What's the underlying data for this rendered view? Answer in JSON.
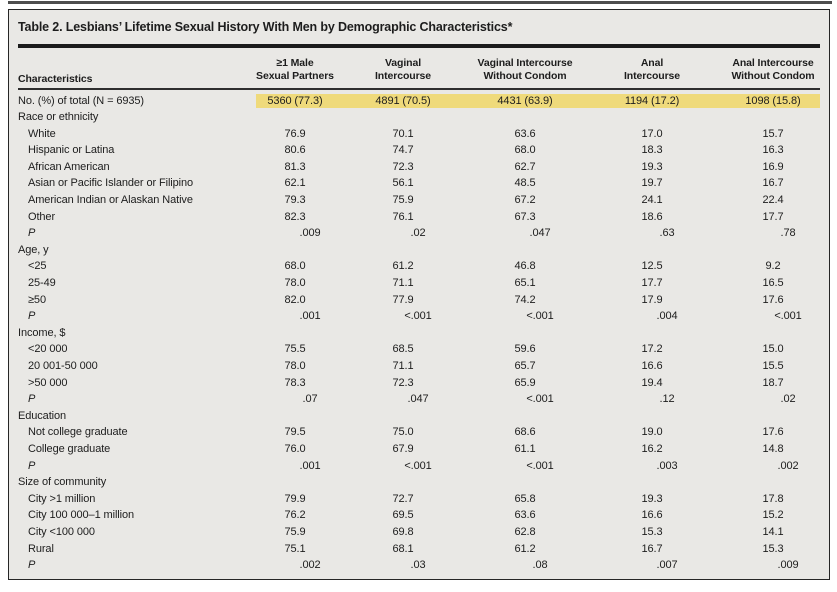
{
  "title": "Table 2. Lesbians’ Lifetime Sexual History With Men by Demographic Characteristics*",
  "colors": {
    "panel_bg": "#e9e8e5",
    "highlight_row": "#efda7b",
    "rule": "#1b1b1b",
    "text": "#1d1d1d"
  },
  "table": {
    "headers": [
      {
        "line1": "",
        "line2": "Characteristics"
      },
      {
        "line1": "≥1 Male",
        "line2": "Sexual Partners"
      },
      {
        "line1": "Vaginal",
        "line2": "Intercourse"
      },
      {
        "line1": "Vaginal Intercourse",
        "line2": "Without Condom"
      },
      {
        "line1": "Anal",
        "line2": "Intercourse"
      },
      {
        "line1": "Anal Intercourse",
        "line2": "Without Condom"
      }
    ],
    "rows": [
      {
        "type": "total",
        "label": "No. (%) of total (N = 6935)",
        "values": [
          "5360 (77.3)",
          "4891 (70.5)",
          "4431 (63.9)",
          "1194 (17.2)",
          "1098 (15.8)"
        ]
      },
      {
        "type": "section",
        "label": "Race or ethnicity",
        "values": [
          "",
          "",
          "",
          "",
          ""
        ]
      },
      {
        "type": "item",
        "label": "White",
        "values": [
          "76.9",
          "70.1",
          "63.6",
          "17.0",
          "15.7"
        ]
      },
      {
        "type": "item",
        "label": "Hispanic or Latina",
        "values": [
          "80.6",
          "74.7",
          "68.0",
          "18.3",
          "16.3"
        ]
      },
      {
        "type": "item",
        "label": "African American",
        "values": [
          "81.3",
          "72.3",
          "62.7",
          "19.3",
          "16.9"
        ]
      },
      {
        "type": "item",
        "label": "Asian or Pacific Islander or Filipino",
        "values": [
          "62.1",
          "56.1",
          "48.5",
          "19.7",
          "16.7"
        ]
      },
      {
        "type": "item",
        "label": "American Indian or Alaskan Native",
        "values": [
          "79.3",
          "75.9",
          "67.2",
          "24.1",
          "22.4"
        ]
      },
      {
        "type": "item",
        "label": "Other",
        "values": [
          "82.3",
          "76.1",
          "67.3",
          "18.6",
          "17.7"
        ]
      },
      {
        "type": "p",
        "label": "P",
        "values": [
          ".009",
          ".02",
          ".047",
          ".63",
          ".78"
        ]
      },
      {
        "type": "section",
        "label": "Age, y",
        "values": [
          "",
          "",
          "",
          "",
          ""
        ]
      },
      {
        "type": "item",
        "label": "<25",
        "values": [
          "68.0",
          "61.2",
          "46.8",
          "12.5",
          "9.2"
        ]
      },
      {
        "type": "item",
        "label": "25-49",
        "values": [
          "78.0",
          "71.1",
          "65.1",
          "17.7",
          "16.5"
        ]
      },
      {
        "type": "item",
        "label": "≥50",
        "values": [
          "82.0",
          "77.9",
          "74.2",
          "17.9",
          "17.6"
        ]
      },
      {
        "type": "p",
        "label": "P",
        "values": [
          ".001",
          "<.001",
          "<.001",
          ".004",
          "<.001"
        ]
      },
      {
        "type": "section",
        "label": "Income, $",
        "values": [
          "",
          "",
          "",
          "",
          ""
        ]
      },
      {
        "type": "item",
        "label": "<20 000",
        "values": [
          "75.5",
          "68.5",
          "59.6",
          "17.2",
          "15.0"
        ]
      },
      {
        "type": "item",
        "label": "20 001-50 000",
        "values": [
          "78.0",
          "71.1",
          "65.7",
          "16.6",
          "15.5"
        ]
      },
      {
        "type": "item",
        "label": ">50 000",
        "values": [
          "78.3",
          "72.3",
          "65.9",
          "19.4",
          "18.7"
        ]
      },
      {
        "type": "p",
        "label": "P",
        "values": [
          ".07",
          ".047",
          "<.001",
          ".12",
          ".02"
        ]
      },
      {
        "type": "section",
        "label": "Education",
        "values": [
          "",
          "",
          "",
          "",
          ""
        ]
      },
      {
        "type": "item",
        "label": "Not college graduate",
        "values": [
          "79.5",
          "75.0",
          "68.6",
          "19.0",
          "17.6"
        ]
      },
      {
        "type": "item",
        "label": "College graduate",
        "values": [
          "76.0",
          "67.9",
          "61.1",
          "16.2",
          "14.8"
        ]
      },
      {
        "type": "p",
        "label": "P",
        "values": [
          ".001",
          "<.001",
          "<.001",
          ".003",
          ".002"
        ]
      },
      {
        "type": "section",
        "label": "Size of community",
        "values": [
          "",
          "",
          "",
          "",
          ""
        ]
      },
      {
        "type": "item",
        "label": "City >1 million",
        "values": [
          "79.9",
          "72.7",
          "65.8",
          "19.3",
          "17.8"
        ]
      },
      {
        "type": "item",
        "label": "City 100 000–1 million",
        "values": [
          "76.2",
          "69.5",
          "63.6",
          "16.6",
          "15.2"
        ]
      },
      {
        "type": "item",
        "label": "City <100 000",
        "values": [
          "75.9",
          "69.8",
          "62.8",
          "15.3",
          "14.1"
        ]
      },
      {
        "type": "item",
        "label": "Rural",
        "values": [
          "75.1",
          "68.1",
          "61.2",
          "16.7",
          "15.3"
        ]
      },
      {
        "type": "p",
        "label": "P",
        "values": [
          ".002",
          ".03",
          ".08",
          ".007",
          ".009"
        ]
      }
    ]
  }
}
